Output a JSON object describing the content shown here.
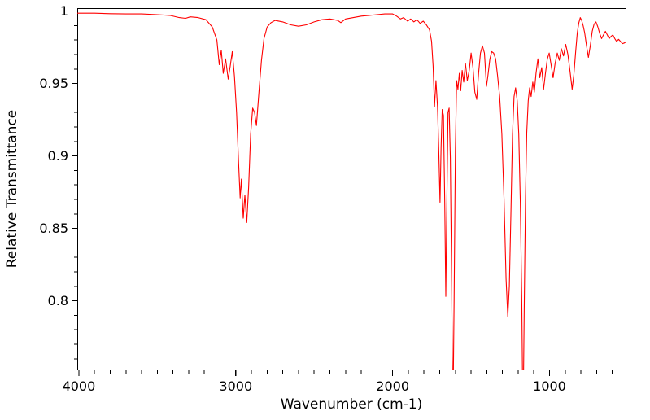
{
  "chart": {
    "xlabel": "Wavenumber (cm-1)",
    "ylabel": "Relative Transmittance",
    "line_color": "#ff0000",
    "frame_color": "#000000",
    "background_color": "#ffffff",
    "text_color": "#000000"
  },
  "chart_data": {
    "type": "line",
    "title": "",
    "xlabel": "Wavenumber (cm-1)",
    "ylabel": "Relative Transmittance",
    "x_axis_reversed": true,
    "xlim": [
      4010,
      510
    ],
    "ylim": [
      0.752,
      1.002
    ],
    "x_ticks": [
      4000,
      3000,
      2000,
      1000
    ],
    "x_tick_labels": [
      "4000",
      "3000",
      "2000",
      "1000"
    ],
    "y_ticks": [
      1,
      0.95,
      0.9,
      0.85,
      0.8
    ],
    "y_tick_labels": [
      "1",
      "0.95",
      "0.9",
      "0.85",
      "0.8"
    ],
    "x_minor_step": 100,
    "y_minor_step": 0.01,
    "grid": false,
    "legend": false,
    "series_name": "IR spectrum",
    "color": "#ff0000",
    "x": [
      4010,
      3900,
      3800,
      3700,
      3600,
      3500,
      3420,
      3360,
      3320,
      3290,
      3240,
      3190,
      3150,
      3120,
      3105,
      3092,
      3080,
      3065,
      3048,
      3035,
      3022,
      3008,
      2995,
      2982,
      2972,
      2964,
      2952,
      2942,
      2930,
      2918,
      2905,
      2892,
      2880,
      2868,
      2852,
      2836,
      2820,
      2800,
      2775,
      2750,
      2700,
      2650,
      2600,
      2550,
      2500,
      2450,
      2400,
      2350,
      2330,
      2300,
      2250,
      2200,
      2150,
      2100,
      2050,
      2000,
      1975,
      1950,
      1930,
      1905,
      1885,
      1865,
      1845,
      1825,
      1805,
      1785,
      1765,
      1752,
      1742,
      1733,
      1724,
      1714,
      1706,
      1698,
      1691,
      1684,
      1676,
      1668,
      1661,
      1654,
      1647,
      1640,
      1632,
      1624,
      1616,
      1608,
      1600,
      1592,
      1584,
      1575,
      1566,
      1557,
      1547,
      1536,
      1524,
      1512,
      1500,
      1488,
      1476,
      1464,
      1452,
      1440,
      1428,
      1415,
      1402,
      1392,
      1380,
      1368,
      1356,
      1344,
      1332,
      1318,
      1304,
      1290,
      1277,
      1266,
      1256,
      1246,
      1236,
      1226,
      1216,
      1206,
      1196,
      1186,
      1177,
      1169,
      1161,
      1153,
      1145,
      1136,
      1127,
      1117,
      1107,
      1097,
      1086,
      1074,
      1062,
      1050,
      1038,
      1026,
      1014,
      1002,
      990,
      977,
      964,
      951,
      938,
      925,
      911,
      897,
      883,
      869,
      856,
      845,
      834,
      823,
      813,
      804,
      795,
      786,
      776,
      764,
      752,
      740,
      728,
      716,
      704,
      692,
      680,
      668,
      656,
      644,
      632,
      620,
      608,
      596,
      584,
      572,
      560,
      548,
      535,
      522,
      510
    ],
    "y": [
      0.9985,
      0.9985,
      0.9982,
      0.998,
      0.998,
      0.9975,
      0.997,
      0.9955,
      0.995,
      0.996,
      0.9955,
      0.994,
      0.989,
      0.98,
      0.963,
      0.973,
      0.957,
      0.967,
      0.953,
      0.962,
      0.972,
      0.955,
      0.93,
      0.895,
      0.871,
      0.884,
      0.857,
      0.873,
      0.854,
      0.878,
      0.915,
      0.933,
      0.93,
      0.921,
      0.944,
      0.966,
      0.981,
      0.989,
      0.992,
      0.9935,
      0.9925,
      0.9905,
      0.9895,
      0.9905,
      0.9925,
      0.994,
      0.9945,
      0.9935,
      0.992,
      0.9945,
      0.9955,
      0.9965,
      0.997,
      0.9975,
      0.998,
      0.998,
      0.9965,
      0.9945,
      0.9955,
      0.993,
      0.9945,
      0.9925,
      0.994,
      0.9915,
      0.993,
      0.9905,
      0.987,
      0.979,
      0.962,
      0.934,
      0.952,
      0.934,
      0.905,
      0.868,
      0.906,
      0.932,
      0.928,
      0.868,
      0.803,
      0.872,
      0.93,
      0.933,
      0.898,
      0.81,
      0.715,
      0.8,
      0.905,
      0.952,
      0.946,
      0.957,
      0.945,
      0.959,
      0.951,
      0.964,
      0.952,
      0.959,
      0.971,
      0.961,
      0.944,
      0.939,
      0.957,
      0.971,
      0.976,
      0.971,
      0.948,
      0.956,
      0.967,
      0.972,
      0.971,
      0.967,
      0.956,
      0.941,
      0.915,
      0.87,
      0.815,
      0.789,
      0.81,
      0.862,
      0.915,
      0.941,
      0.947,
      0.938,
      0.915,
      0.868,
      0.8,
      0.712,
      0.795,
      0.872,
      0.916,
      0.938,
      0.947,
      0.941,
      0.951,
      0.944,
      0.957,
      0.967,
      0.954,
      0.961,
      0.946,
      0.957,
      0.967,
      0.971,
      0.963,
      0.954,
      0.964,
      0.971,
      0.966,
      0.974,
      0.969,
      0.977,
      0.97,
      0.958,
      0.946,
      0.956,
      0.971,
      0.985,
      0.992,
      0.9955,
      0.9935,
      0.99,
      0.985,
      0.976,
      0.968,
      0.976,
      0.986,
      0.991,
      0.9925,
      0.989,
      0.9845,
      0.981,
      0.9835,
      0.986,
      0.9835,
      0.981,
      0.9825,
      0.9835,
      0.981,
      0.979,
      0.9805,
      0.979,
      0.9775,
      0.978,
      0.979
    ]
  }
}
